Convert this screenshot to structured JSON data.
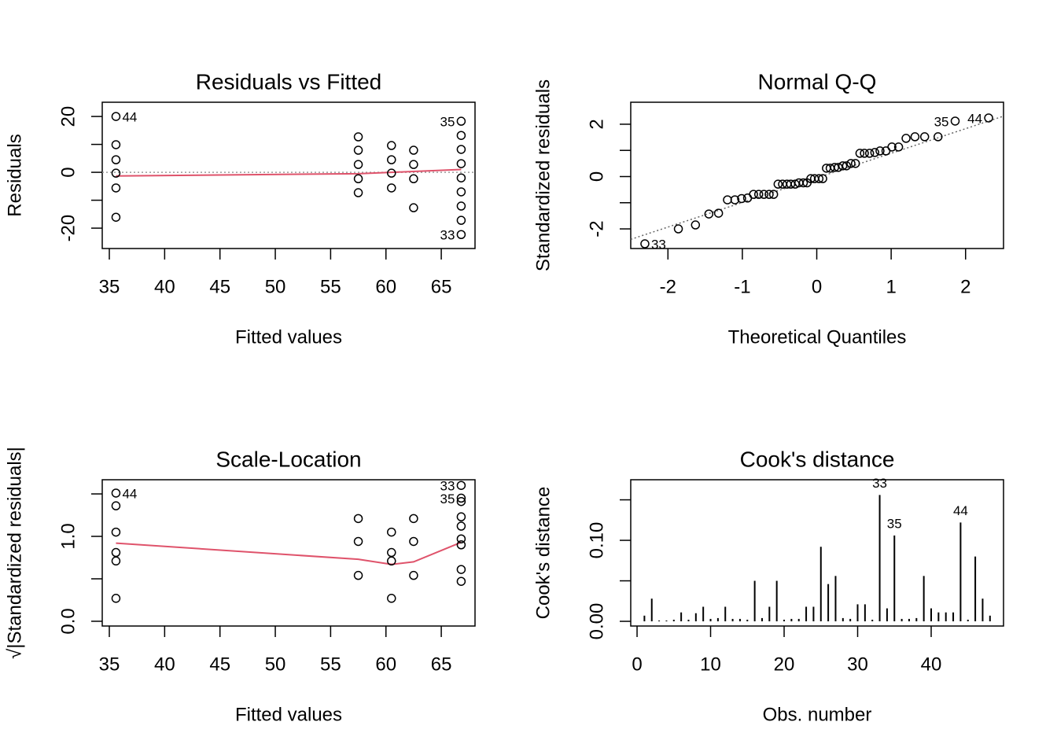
{
  "chart_data": [
    {
      "type": "scatter",
      "title": "Residuals vs Fitted",
      "xlabel": "Fitted values",
      "ylabel": "Residuals",
      "x": [
        35.6,
        35.6,
        35.6,
        35.6,
        35.6,
        35.6,
        57.5,
        57.5,
        57.5,
        57.5,
        57.5,
        60.5,
        60.5,
        60.5,
        60.5,
        62.5,
        62.5,
        62.5,
        62.5,
        66.8,
        66.8,
        66.8,
        66.8,
        66.8,
        66.8,
        66.8,
        66.8,
        66.8
      ],
      "values": [
        20.0,
        9.9,
        4.5,
        -0.3,
        -5.6,
        -16.1,
        12.7,
        7.9,
        2.8,
        -2.3,
        -7.3,
        9.6,
        4.5,
        -0.3,
        -5.6,
        7.9,
        2.8,
        -2.3,
        -12.7,
        18.3,
        13.2,
        8.2,
        3.1,
        -2.0,
        -7.0,
        -12.1,
        -17.2,
        -22.3
      ],
      "smooth": {
        "x": [
          35.6,
          57.5,
          60.5,
          62.5,
          66.8
        ],
        "values": [
          -1.3,
          -0.5,
          0.0,
          0.3,
          1.0
        ],
        "color": "#DF536B"
      },
      "hline": 0,
      "annotations": [
        {
          "text": "44",
          "x": 35.6,
          "y": 20.0
        },
        {
          "text": "35",
          "x": 66.8,
          "y": 18.3
        },
        {
          "text": "33",
          "x": 66.8,
          "y": -22.3
        }
      ],
      "xlim": [
        34.36,
        68.05
      ],
      "ylim": [
        -27.3,
        25.1
      ],
      "xticks": [
        35,
        40,
        45,
        50,
        55,
        60,
        65
      ],
      "yticks": [
        -20,
        0,
        20
      ],
      "yminorticks": [
        -10,
        10
      ]
    },
    {
      "type": "scatter",
      "title": "Normal Q-Q",
      "xlabel": "Theoretical Quantiles",
      "ylabel": "Standardized residuals",
      "x": [
        -2.31,
        -1.86,
        -1.63,
        -1.45,
        -1.32,
        -1.2,
        -1.1,
        -1.01,
        -0.93,
        -0.85,
        -0.78,
        -0.71,
        -0.64,
        -0.58,
        -0.52,
        -0.46,
        -0.4,
        -0.35,
        -0.29,
        -0.24,
        -0.18,
        -0.13,
        -0.08,
        -0.03,
        0.03,
        0.08,
        0.13,
        0.18,
        0.24,
        0.29,
        0.35,
        0.4,
        0.46,
        0.52,
        0.58,
        0.64,
        0.71,
        0.78,
        0.85,
        0.93,
        1.01,
        1.1,
        1.2,
        1.32,
        1.45,
        1.63,
        1.86,
        2.31
      ],
      "values": [
        -2.57,
        -2.0,
        -1.85,
        -1.43,
        -1.4,
        -0.89,
        -0.89,
        -0.84,
        -0.82,
        -0.68,
        -0.68,
        -0.68,
        -0.68,
        -0.68,
        -0.29,
        -0.29,
        -0.29,
        -0.29,
        -0.29,
        -0.24,
        -0.24,
        -0.24,
        -0.08,
        -0.08,
        -0.08,
        -0.08,
        0.32,
        0.32,
        0.35,
        0.35,
        0.41,
        0.41,
        0.5,
        0.5,
        0.89,
        0.89,
        0.89,
        0.92,
        0.98,
        0.98,
        1.13,
        1.13,
        1.46,
        1.52,
        1.52,
        1.52,
        2.12,
        2.24
      ],
      "ref_line": {
        "intercept": -0.05,
        "slope": 0.94
      },
      "annotations": [
        {
          "text": "33",
          "x": -2.31,
          "y": -2.57
        },
        {
          "text": "35",
          "x": 1.86,
          "y": 2.12
        },
        {
          "text": "44",
          "x": 2.31,
          "y": 2.24
        }
      ],
      "xlim": [
        -2.5,
        2.51
      ],
      "ylim": [
        -2.75,
        2.84
      ],
      "xticks": [
        -2,
        -1,
        0,
        1,
        2
      ],
      "yticks": [
        -2,
        0,
        2
      ],
      "yminorticks": [
        -1,
        1
      ]
    },
    {
      "type": "scatter",
      "title": "Scale-Location",
      "xlabel": "Fitted values",
      "ylabel": "√|Standardized residuals|",
      "x": [
        35.6,
        35.6,
        35.6,
        35.6,
        35.6,
        35.6,
        57.5,
        57.5,
        57.5,
        60.5,
        60.5,
        60.5,
        60.5,
        62.5,
        62.5,
        62.5,
        66.8,
        66.8,
        66.8,
        66.8,
        66.8,
        66.8,
        66.8,
        66.8,
        66.8
      ],
      "values": [
        1.51,
        1.36,
        1.05,
        0.81,
        0.71,
        0.27,
        1.21,
        0.94,
        0.54,
        1.05,
        0.81,
        0.71,
        0.27,
        1.21,
        0.94,
        0.54,
        1.6,
        1.45,
        1.41,
        1.23,
        1.12,
        0.97,
        0.9,
        0.61,
        0.47
      ],
      "smooth": {
        "x": [
          35.6,
          57.5,
          60.5,
          62.5,
          66.8
        ],
        "values": [
          0.92,
          0.73,
          0.67,
          0.7,
          0.93
        ],
        "color": "#DF536B"
      },
      "annotations": [
        {
          "text": "44",
          "x": 35.6,
          "y": 1.51
        },
        {
          "text": "33",
          "x": 66.8,
          "y": 1.6
        },
        {
          "text": "35",
          "x": 66.8,
          "y": 1.45
        }
      ],
      "xlim": [
        34.36,
        68.05
      ],
      "ylim": [
        -0.056,
        1.667
      ],
      "xticks": [
        35,
        40,
        45,
        50,
        55,
        60,
        65
      ],
      "yticks": [
        {
          "value": 0,
          "label": "0.0"
        },
        {
          "value": 1,
          "label": "1.0"
        }
      ],
      "yminorticks": [
        0.5,
        1.5
      ]
    },
    {
      "type": "bar",
      "title": "Cook's distance",
      "xlabel": "Obs. number",
      "ylabel": "Cook's distance",
      "x": [
        1,
        2,
        3,
        4,
        5,
        6,
        7,
        8,
        9,
        10,
        11,
        12,
        13,
        14,
        15,
        16,
        17,
        18,
        19,
        20,
        21,
        22,
        23,
        24,
        25,
        26,
        27,
        28,
        29,
        30,
        31,
        32,
        33,
        34,
        35,
        36,
        37,
        38,
        39,
        40,
        41,
        42,
        43,
        44,
        45,
        46,
        47,
        48
      ],
      "values": [
        0.007,
        0.028,
        0.001,
        0.001,
        0.002,
        0.011,
        0.002,
        0.01,
        0.018,
        0.003,
        0.004,
        0.018,
        0.003,
        0.003,
        0.002,
        0.05,
        0.004,
        0.018,
        0.05,
        0.002,
        0.003,
        0.003,
        0.018,
        0.018,
        0.092,
        0.046,
        0.056,
        0.004,
        0.003,
        0.021,
        0.021,
        0.002,
        0.156,
        0.016,
        0.106,
        0.003,
        0.003,
        0.004,
        0.056,
        0.016,
        0.011,
        0.011,
        0.011,
        0.122,
        0.002,
        0.08,
        0.028,
        0.007
      ],
      "annotations": [
        {
          "text": "33",
          "x": 33,
          "y": 0.156
        },
        {
          "text": "35",
          "x": 35,
          "y": 0.106
        },
        {
          "text": "44",
          "x": 44,
          "y": 0.122
        }
      ],
      "xlim": [
        -0.86,
        49.84
      ],
      "ylim": [
        -0.0058,
        0.1748
      ],
      "xticks": [
        0,
        10,
        20,
        30,
        40
      ],
      "yticks": [
        {
          "value": 0,
          "label": "0.00"
        },
        {
          "value": 0.1,
          "label": "0.10"
        }
      ],
      "yminorticks": [
        0.05,
        0.15
      ]
    }
  ]
}
